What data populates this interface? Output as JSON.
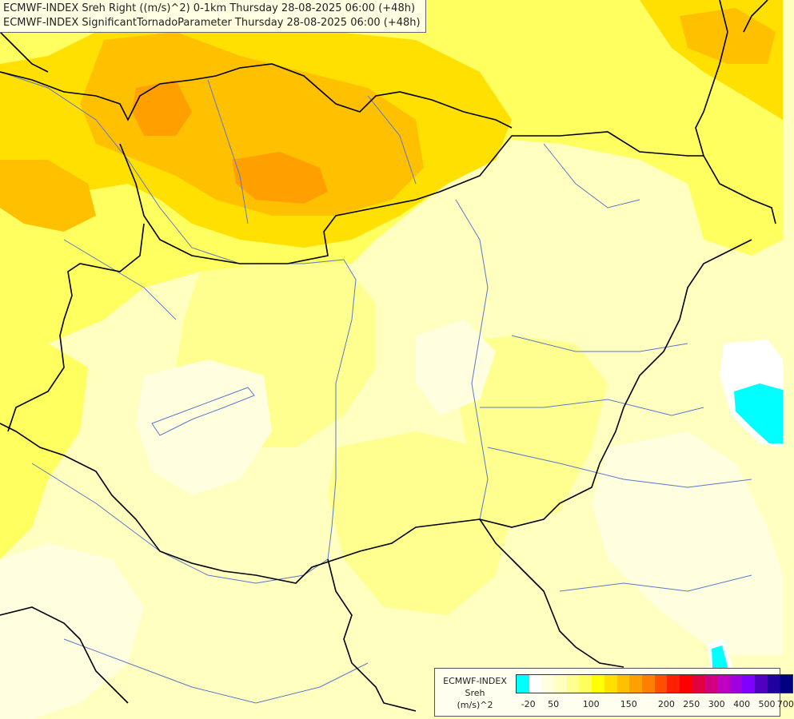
{
  "header": {
    "line1": "ECMWF-INDEX Sreh Right ((m/s)^2) 0-1km Thursday 28-08-2025 06:00 (+48h)",
    "line2": "ECMWF-INDEX SignificantTornadoParameter Thursday 28-08-2025 06:00 (+48h)"
  },
  "legend": {
    "title_lines": [
      "ECMWF-INDEX",
      "Sreh",
      "(m/s)^2"
    ],
    "colors": [
      "#00ffff",
      "#ffffff",
      "#ffffe0",
      "#ffffc0",
      "#ffff90",
      "#ffff60",
      "#ffff00",
      "#ffe000",
      "#ffc000",
      "#ffa000",
      "#ff8000",
      "#ff5000",
      "#ff2000",
      "#ff0000",
      "#e00040",
      "#d00080",
      "#c000c0",
      "#a000e0",
      "#8000ff",
      "#5000c0",
      "#2000a0",
      "#000080"
    ],
    "ticks": [
      "-20",
      "50",
      "100",
      "150",
      "200",
      "250",
      "300",
      "400",
      "500",
      "700"
    ]
  },
  "map": {
    "fill_colors": {
      "base": "#ffffc0",
      "pale": "#ffffe0",
      "light_yellow": "#ffff90",
      "yellow": "#ffff60",
      "strong_yellow": "#ffff00",
      "gold": "#ffe000",
      "orange_gold": "#ffc000",
      "orange": "#ffa000",
      "cyan": "#00ffff"
    },
    "border_color": "#000000",
    "river_color": "#5a78c8"
  }
}
